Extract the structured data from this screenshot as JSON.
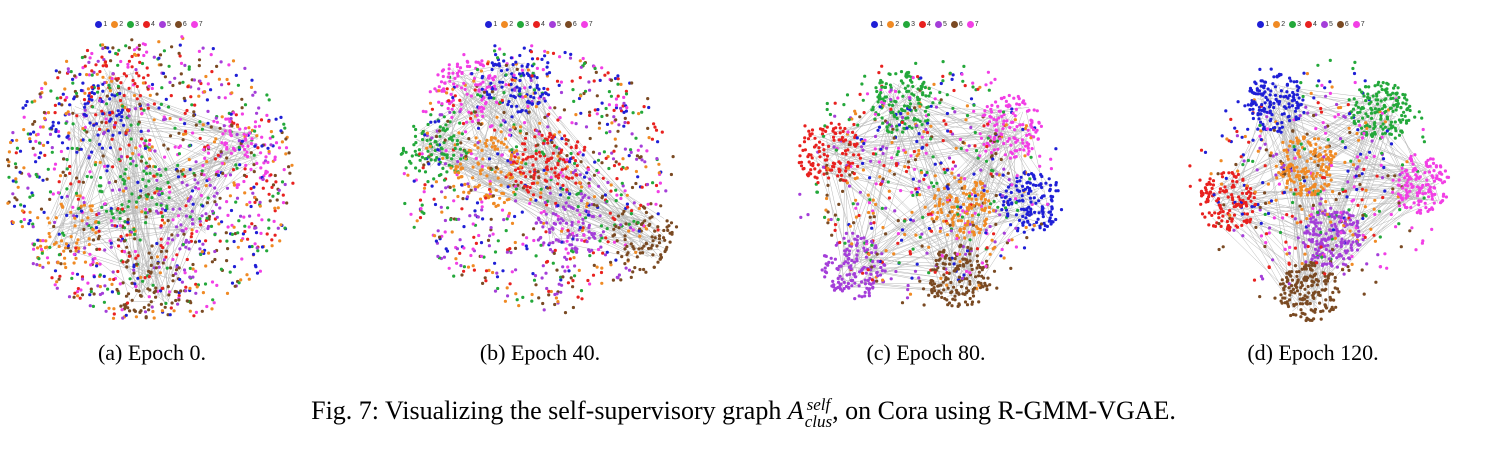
{
  "legend": {
    "labels": [
      "1",
      "2",
      "3",
      "4",
      "5",
      "6",
      "7"
    ],
    "colors": [
      "#1f1fd6",
      "#f08a24",
      "#23a83a",
      "#e8211f",
      "#a43ed9",
      "#7a4a23",
      "#f23fe5"
    ]
  },
  "panels": [
    {
      "caption": "(a) Epoch 0.",
      "clustering": 0.0
    },
    {
      "caption": "(b) Epoch 40.",
      "clustering": 0.35
    },
    {
      "caption": "(c) Epoch 80.",
      "clustering": 0.75
    },
    {
      "caption": "(d) Epoch 120.",
      "clustering": 1.0
    }
  ],
  "figure_caption": {
    "prefix": "Fig. 7: Visualizing the self-supervisory graph ",
    "symbol": "A",
    "superscript": "self",
    "subscript": "clus",
    "suffix": ", on Cora using R-GMM-VGAE."
  }
}
